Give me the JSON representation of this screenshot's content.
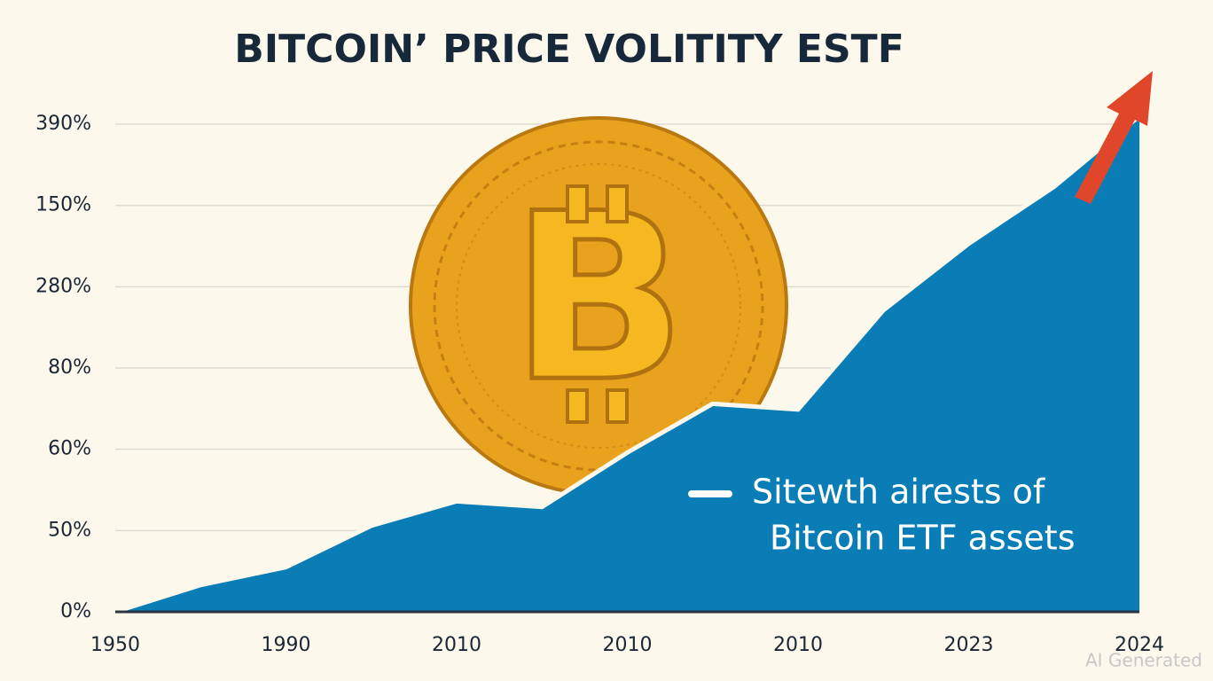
{
  "chart_data": {
    "type": "area",
    "title": "BITCOIN’ PRICE VOLITITY ESTF",
    "categories": [
      "1950",
      null,
      "1990",
      null,
      "2010",
      null,
      "2010",
      null,
      "2010",
      null,
      "2023",
      null,
      "2024"
    ],
    "series": [
      {
        "color": "#0a7db6",
        "values": [
          0,
          0.33,
          0.55,
          1.06,
          1.36,
          1.29,
          1.96,
          2.56,
          2.49,
          3.71,
          4.53,
          5.23,
          6.1
        ]
      }
    ],
    "ylim": [
      0,
      6
    ],
    "yticks": [
      {
        "value": 0,
        "label": "0%"
      },
      {
        "value": 1,
        "label": "50%"
      },
      {
        "value": 2,
        "label": "60%"
      },
      {
        "value": 3,
        "label": "80%"
      },
      {
        "value": 4,
        "label": "280%"
      },
      {
        "value": 5,
        "label": "150%"
      },
      {
        "value": 6,
        "label": "390%"
      }
    ],
    "grid": true,
    "annotation": [
      "Sitewth airests of",
      "Bitcoin ETF assets"
    ],
    "watermark": "AI Generated"
  }
}
